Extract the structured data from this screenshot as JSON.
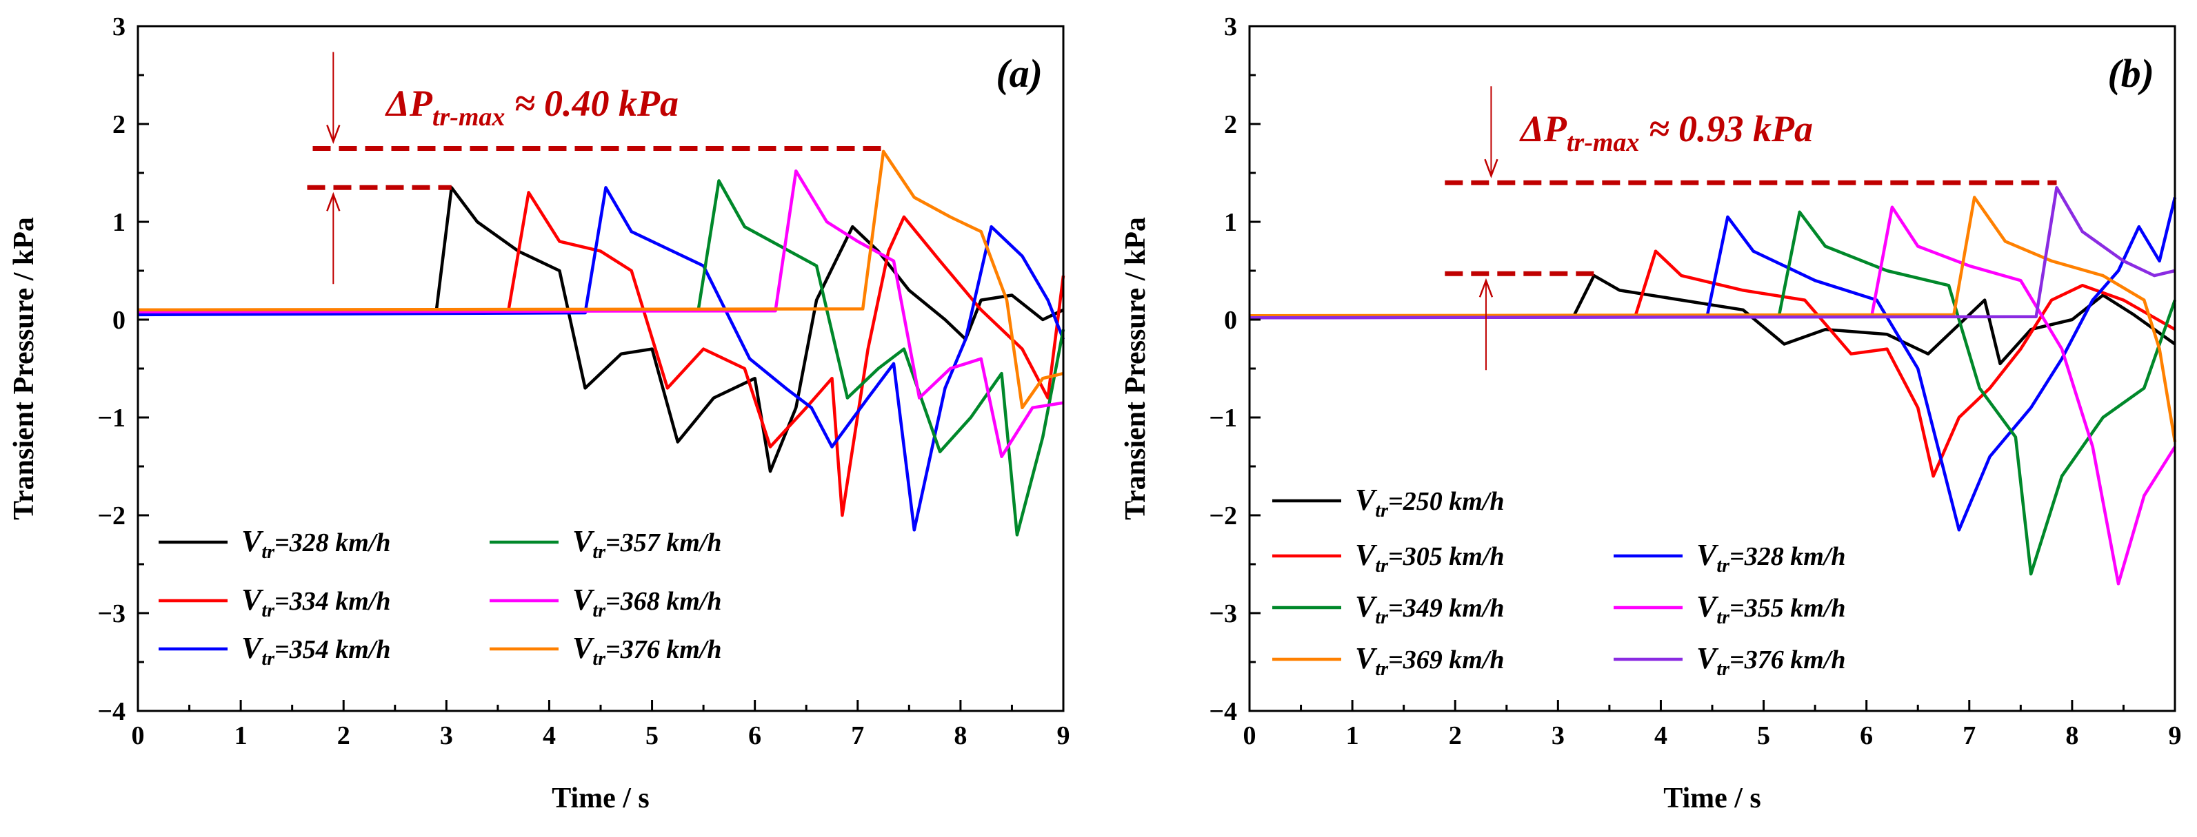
{
  "chart_data": [
    {
      "panel": "(a)",
      "type": "line",
      "title": "",
      "xlabel": "Time / s",
      "ylabel": "Transient Pressure / kPa",
      "xlim": [
        0,
        9
      ],
      "ylim": [
        -4,
        3
      ],
      "xticks": [
        "0",
        "1",
        "2",
        "3",
        "4",
        "5",
        "6",
        "7",
        "8",
        "9"
      ],
      "yticks": [
        "−4",
        "−3",
        "−2",
        "−1",
        "0",
        "1",
        "2",
        "3"
      ],
      "grid": false,
      "legend_position": "lower-left",
      "annotation": {
        "delta": "ΔP",
        "sub": "tr-max",
        "text": " ≈ 0.40 kPa",
        "upper": 1.75,
        "lower": 1.35,
        "x_start": 1.7
      },
      "series": [
        {
          "name": "Vtr=328 km/h",
          "speed": "328",
          "color": "#000000",
          "points": [
            [
              0,
              0.06
            ],
            [
              2.9,
              0.07
            ],
            [
              3.05,
              1.35
            ],
            [
              3.3,
              1.0
            ],
            [
              3.7,
              0.7
            ],
            [
              4.1,
              0.5
            ],
            [
              4.35,
              -0.7
            ],
            [
              4.7,
              -0.35
            ],
            [
              5.0,
              -0.3
            ],
            [
              5.25,
              -1.25
            ],
            [
              5.6,
              -0.8
            ],
            [
              6.0,
              -0.6
            ],
            [
              6.15,
              -1.55
            ],
            [
              6.4,
              -0.9
            ],
            [
              6.6,
              0.2
            ],
            [
              6.95,
              0.95
            ],
            [
              7.2,
              0.7
            ],
            [
              7.5,
              0.3
            ],
            [
              7.85,
              0.0
            ],
            [
              8.05,
              -0.2
            ],
            [
              8.2,
              0.2
            ],
            [
              8.5,
              0.25
            ],
            [
              8.8,
              0.0
            ],
            [
              9.0,
              0.1
            ]
          ]
        },
        {
          "name": "Vtr=334 km/h",
          "speed": "334",
          "color": "#ff0000",
          "points": [
            [
              0,
              0.06
            ],
            [
              3.6,
              0.07
            ],
            [
              3.8,
              1.3
            ],
            [
              4.1,
              0.8
            ],
            [
              4.5,
              0.7
            ],
            [
              4.8,
              0.5
            ],
            [
              5.15,
              -0.7
            ],
            [
              5.5,
              -0.3
            ],
            [
              5.9,
              -0.5
            ],
            [
              6.15,
              -1.3
            ],
            [
              6.5,
              -0.9
            ],
            [
              6.75,
              -0.6
            ],
            [
              6.85,
              -2.0
            ],
            [
              7.1,
              -0.3
            ],
            [
              7.3,
              0.7
            ],
            [
              7.45,
              1.05
            ],
            [
              7.8,
              0.6
            ],
            [
              8.2,
              0.1
            ],
            [
              8.6,
              -0.3
            ],
            [
              8.85,
              -0.8
            ],
            [
              9.0,
              0.45
            ]
          ]
        },
        {
          "name": "Vtr=354 km/h",
          "speed": "354",
          "color": "#0000ff",
          "points": [
            [
              0,
              0.05
            ],
            [
              4.35,
              0.07
            ],
            [
              4.55,
              1.35
            ],
            [
              4.8,
              0.9
            ],
            [
              5.2,
              0.7
            ],
            [
              5.5,
              0.55
            ],
            [
              5.95,
              -0.4
            ],
            [
              6.3,
              -0.7
            ],
            [
              6.55,
              -0.9
            ],
            [
              6.75,
              -1.3
            ],
            [
              7.1,
              -0.8
            ],
            [
              7.35,
              -0.45
            ],
            [
              7.55,
              -2.15
            ],
            [
              7.85,
              -0.7
            ],
            [
              8.05,
              -0.2
            ],
            [
              8.3,
              0.95
            ],
            [
              8.6,
              0.65
            ],
            [
              8.85,
              0.2
            ],
            [
              9.0,
              -0.2
            ]
          ]
        },
        {
          "name": "Vtr=357 km/h",
          "speed": "357",
          "color": "#00882a",
          "points": [
            [
              0,
              0.09
            ],
            [
              5.45,
              0.1
            ],
            [
              5.65,
              1.42
            ],
            [
              5.9,
              0.95
            ],
            [
              6.25,
              0.75
            ],
            [
              6.6,
              0.55
            ],
            [
              6.9,
              -0.8
            ],
            [
              7.2,
              -0.5
            ],
            [
              7.45,
              -0.3
            ],
            [
              7.8,
              -1.35
            ],
            [
              8.1,
              -1.0
            ],
            [
              8.4,
              -0.55
            ],
            [
              8.55,
              -2.2
            ],
            [
              8.8,
              -1.2
            ],
            [
              9.0,
              -0.1
            ]
          ]
        },
        {
          "name": "Vtr=368 km/h",
          "speed": "368",
          "color": "#ff00ff",
          "points": [
            [
              0,
              0.08
            ],
            [
              6.2,
              0.09
            ],
            [
              6.4,
              1.52
            ],
            [
              6.7,
              1.0
            ],
            [
              7.0,
              0.8
            ],
            [
              7.35,
              0.6
            ],
            [
              7.6,
              -0.8
            ],
            [
              7.9,
              -0.5
            ],
            [
              8.2,
              -0.4
            ],
            [
              8.4,
              -1.4
            ],
            [
              8.7,
              -0.9
            ],
            [
              9.0,
              -0.85
            ]
          ]
        },
        {
          "name": "Vtr=376 km/h",
          "speed": "376",
          "color": "#ff8000",
          "points": [
            [
              0,
              0.1
            ],
            [
              7.05,
              0.11
            ],
            [
              7.25,
              1.72
            ],
            [
              7.55,
              1.25
            ],
            [
              7.9,
              1.05
            ],
            [
              8.2,
              0.9
            ],
            [
              8.45,
              0.2
            ],
            [
              8.6,
              -0.9
            ],
            [
              8.8,
              -0.6
            ],
            [
              9.0,
              -0.55
            ]
          ]
        }
      ]
    },
    {
      "panel": "(b)",
      "type": "line",
      "title": "",
      "xlabel": "Time / s",
      "ylabel": "Transient Pressure / kPa",
      "xlim": [
        0,
        9
      ],
      "ylim": [
        -4,
        3
      ],
      "xticks": [
        "0",
        "1",
        "2",
        "3",
        "4",
        "5",
        "6",
        "7",
        "8",
        "9"
      ],
      "yticks": [
        "−4",
        "−3",
        "−2",
        "−1",
        "0",
        "1",
        "2",
        "3"
      ],
      "grid": false,
      "legend_position": "lower-left",
      "annotation": {
        "delta": "ΔP",
        "sub": "tr-max",
        "text": " ≈ 0.93 kPa",
        "upper": 1.4,
        "lower": 0.47,
        "x_start": 1.9
      },
      "series": [
        {
          "name": "Vtr=250 km/h",
          "speed": "250",
          "color": "#000000",
          "points": [
            [
              0,
              0.02
            ],
            [
              3.15,
              0.03
            ],
            [
              3.35,
              0.45
            ],
            [
              3.6,
              0.3
            ],
            [
              4.2,
              0.2
            ],
            [
              4.8,
              0.1
            ],
            [
              5.2,
              -0.25
            ],
            [
              5.6,
              -0.1
            ],
            [
              6.2,
              -0.15
            ],
            [
              6.6,
              -0.35
            ],
            [
              6.95,
              0.0
            ],
            [
              7.15,
              0.2
            ],
            [
              7.3,
              -0.45
            ],
            [
              7.6,
              -0.1
            ],
            [
              8.0,
              0.0
            ],
            [
              8.3,
              0.25
            ],
            [
              8.6,
              0.05
            ],
            [
              9.0,
              -0.25
            ]
          ]
        },
        {
          "name": "Vtr=305 km/h",
          "speed": "305",
          "color": "#ff0000",
          "points": [
            [
              0,
              0.02
            ],
            [
              3.75,
              0.03
            ],
            [
              3.95,
              0.7
            ],
            [
              4.2,
              0.45
            ],
            [
              4.8,
              0.3
            ],
            [
              5.4,
              0.2
            ],
            [
              5.85,
              -0.35
            ],
            [
              6.2,
              -0.3
            ],
            [
              6.5,
              -0.9
            ],
            [
              6.65,
              -1.6
            ],
            [
              6.9,
              -1.0
            ],
            [
              7.2,
              -0.7
            ],
            [
              7.5,
              -0.3
            ],
            [
              7.8,
              0.2
            ],
            [
              8.1,
              0.35
            ],
            [
              8.5,
              0.2
            ],
            [
              9.0,
              -0.1
            ]
          ]
        },
        {
          "name": "Vtr=328 km/h",
          "speed": "328",
          "color": "#0000ff",
          "points": [
            [
              0,
              0.02
            ],
            [
              4.45,
              0.03
            ],
            [
              4.65,
              1.05
            ],
            [
              4.9,
              0.7
            ],
            [
              5.5,
              0.4
            ],
            [
              6.1,
              0.2
            ],
            [
              6.5,
              -0.5
            ],
            [
              6.9,
              -2.15
            ],
            [
              7.2,
              -1.4
            ],
            [
              7.6,
              -0.9
            ],
            [
              7.9,
              -0.4
            ],
            [
              8.2,
              0.2
            ],
            [
              8.45,
              0.5
            ],
            [
              8.65,
              0.95
            ],
            [
              8.85,
              0.6
            ],
            [
              9.0,
              1.25
            ]
          ]
        },
        {
          "name": "Vtr=349 km/h",
          "speed": "349",
          "color": "#00882a",
          "points": [
            [
              0,
              0.03
            ],
            [
              5.15,
              0.04
            ],
            [
              5.35,
              1.1
            ],
            [
              5.6,
              0.75
            ],
            [
              6.2,
              0.5
            ],
            [
              6.8,
              0.35
            ],
            [
              7.1,
              -0.7
            ],
            [
              7.45,
              -1.2
            ],
            [
              7.6,
              -2.6
            ],
            [
              7.9,
              -1.6
            ],
            [
              8.3,
              -1.0
            ],
            [
              8.7,
              -0.7
            ],
            [
              9.0,
              0.2
            ]
          ]
        },
        {
          "name": "Vtr=355 km/h",
          "speed": "355",
          "color": "#ff00ff",
          "points": [
            [
              0,
              0.02
            ],
            [
              6.05,
              0.03
            ],
            [
              6.25,
              1.15
            ],
            [
              6.5,
              0.75
            ],
            [
              7.0,
              0.55
            ],
            [
              7.5,
              0.4
            ],
            [
              7.9,
              -0.3
            ],
            [
              8.2,
              -1.3
            ],
            [
              8.45,
              -2.7
            ],
            [
              8.7,
              -1.8
            ],
            [
              9.0,
              -1.3
            ]
          ]
        },
        {
          "name": "Vtr=369 km/h",
          "speed": "369",
          "color": "#ff8000",
          "points": [
            [
              0,
              0.04
            ],
            [
              6.85,
              0.05
            ],
            [
              7.05,
              1.25
            ],
            [
              7.35,
              0.8
            ],
            [
              7.8,
              0.6
            ],
            [
              8.3,
              0.45
            ],
            [
              8.7,
              0.2
            ],
            [
              8.85,
              -0.3
            ],
            [
              9.0,
              -1.25
            ]
          ]
        },
        {
          "name": "Vtr=376 km/h",
          "speed": "376",
          "color": "#8a2be2",
          "points": [
            [
              0,
              0.02
            ],
            [
              7.65,
              0.03
            ],
            [
              7.85,
              1.35
            ],
            [
              8.1,
              0.9
            ],
            [
              8.5,
              0.6
            ],
            [
              8.8,
              0.45
            ],
            [
              9.0,
              0.5
            ]
          ]
        }
      ]
    }
  ]
}
